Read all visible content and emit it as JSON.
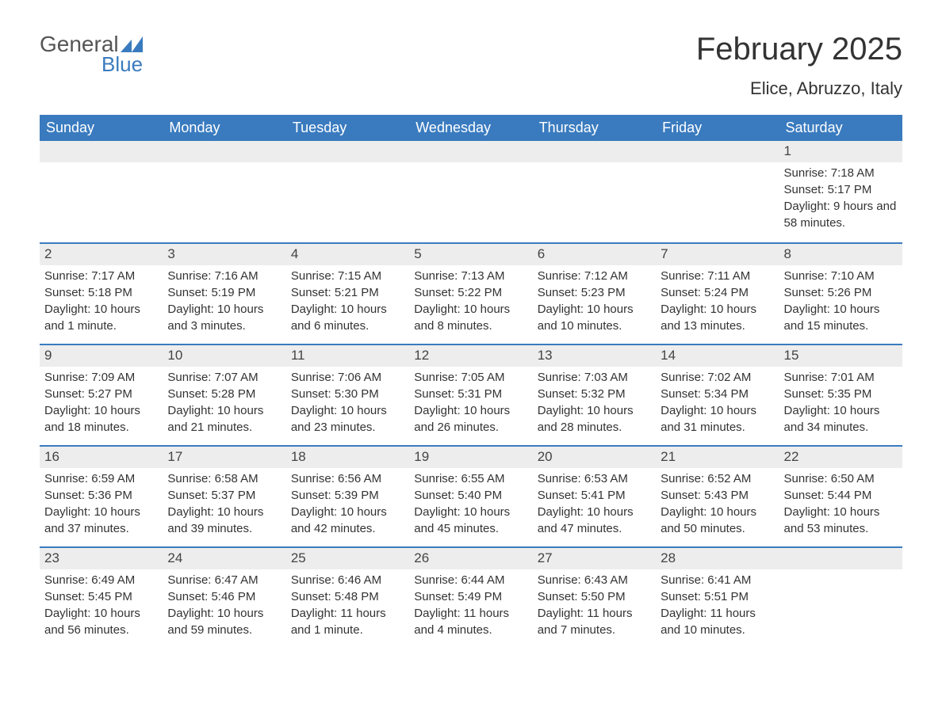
{
  "logo": {
    "text1": "General",
    "text2": "Blue",
    "icon_color": "#3a7bbf",
    "text1_color": "#555555"
  },
  "title": "February 2025",
  "location": "Elice, Abruzzo, Italy",
  "colors": {
    "header_bg": "#3a7bbf",
    "header_text": "#ffffff",
    "day_header_bg": "#ededed",
    "row_border": "#3a7bbf",
    "body_text": "#333333"
  },
  "fonts": {
    "title_size": 40,
    "location_size": 22,
    "dayheader_size": 18,
    "cell_size": 15
  },
  "day_labels": [
    "Sunday",
    "Monday",
    "Tuesday",
    "Wednesday",
    "Thursday",
    "Friday",
    "Saturday"
  ],
  "weeks": [
    [
      null,
      null,
      null,
      null,
      null,
      null,
      {
        "n": "1",
        "sunrise": "Sunrise: 7:18 AM",
        "sunset": "Sunset: 5:17 PM",
        "daylight": "Daylight: 9 hours and 58 minutes."
      }
    ],
    [
      {
        "n": "2",
        "sunrise": "Sunrise: 7:17 AM",
        "sunset": "Sunset: 5:18 PM",
        "daylight": "Daylight: 10 hours and 1 minute."
      },
      {
        "n": "3",
        "sunrise": "Sunrise: 7:16 AM",
        "sunset": "Sunset: 5:19 PM",
        "daylight": "Daylight: 10 hours and 3 minutes."
      },
      {
        "n": "4",
        "sunrise": "Sunrise: 7:15 AM",
        "sunset": "Sunset: 5:21 PM",
        "daylight": "Daylight: 10 hours and 6 minutes."
      },
      {
        "n": "5",
        "sunrise": "Sunrise: 7:13 AM",
        "sunset": "Sunset: 5:22 PM",
        "daylight": "Daylight: 10 hours and 8 minutes."
      },
      {
        "n": "6",
        "sunrise": "Sunrise: 7:12 AM",
        "sunset": "Sunset: 5:23 PM",
        "daylight": "Daylight: 10 hours and 10 minutes."
      },
      {
        "n": "7",
        "sunrise": "Sunrise: 7:11 AM",
        "sunset": "Sunset: 5:24 PM",
        "daylight": "Daylight: 10 hours and 13 minutes."
      },
      {
        "n": "8",
        "sunrise": "Sunrise: 7:10 AM",
        "sunset": "Sunset: 5:26 PM",
        "daylight": "Daylight: 10 hours and 15 minutes."
      }
    ],
    [
      {
        "n": "9",
        "sunrise": "Sunrise: 7:09 AM",
        "sunset": "Sunset: 5:27 PM",
        "daylight": "Daylight: 10 hours and 18 minutes."
      },
      {
        "n": "10",
        "sunrise": "Sunrise: 7:07 AM",
        "sunset": "Sunset: 5:28 PM",
        "daylight": "Daylight: 10 hours and 21 minutes."
      },
      {
        "n": "11",
        "sunrise": "Sunrise: 7:06 AM",
        "sunset": "Sunset: 5:30 PM",
        "daylight": "Daylight: 10 hours and 23 minutes."
      },
      {
        "n": "12",
        "sunrise": "Sunrise: 7:05 AM",
        "sunset": "Sunset: 5:31 PM",
        "daylight": "Daylight: 10 hours and 26 minutes."
      },
      {
        "n": "13",
        "sunrise": "Sunrise: 7:03 AM",
        "sunset": "Sunset: 5:32 PM",
        "daylight": "Daylight: 10 hours and 28 minutes."
      },
      {
        "n": "14",
        "sunrise": "Sunrise: 7:02 AM",
        "sunset": "Sunset: 5:34 PM",
        "daylight": "Daylight: 10 hours and 31 minutes."
      },
      {
        "n": "15",
        "sunrise": "Sunrise: 7:01 AM",
        "sunset": "Sunset: 5:35 PM",
        "daylight": "Daylight: 10 hours and 34 minutes."
      }
    ],
    [
      {
        "n": "16",
        "sunrise": "Sunrise: 6:59 AM",
        "sunset": "Sunset: 5:36 PM",
        "daylight": "Daylight: 10 hours and 37 minutes."
      },
      {
        "n": "17",
        "sunrise": "Sunrise: 6:58 AM",
        "sunset": "Sunset: 5:37 PM",
        "daylight": "Daylight: 10 hours and 39 minutes."
      },
      {
        "n": "18",
        "sunrise": "Sunrise: 6:56 AM",
        "sunset": "Sunset: 5:39 PM",
        "daylight": "Daylight: 10 hours and 42 minutes."
      },
      {
        "n": "19",
        "sunrise": "Sunrise: 6:55 AM",
        "sunset": "Sunset: 5:40 PM",
        "daylight": "Daylight: 10 hours and 45 minutes."
      },
      {
        "n": "20",
        "sunrise": "Sunrise: 6:53 AM",
        "sunset": "Sunset: 5:41 PM",
        "daylight": "Daylight: 10 hours and 47 minutes."
      },
      {
        "n": "21",
        "sunrise": "Sunrise: 6:52 AM",
        "sunset": "Sunset: 5:43 PM",
        "daylight": "Daylight: 10 hours and 50 minutes."
      },
      {
        "n": "22",
        "sunrise": "Sunrise: 6:50 AM",
        "sunset": "Sunset: 5:44 PM",
        "daylight": "Daylight: 10 hours and 53 minutes."
      }
    ],
    [
      {
        "n": "23",
        "sunrise": "Sunrise: 6:49 AM",
        "sunset": "Sunset: 5:45 PM",
        "daylight": "Daylight: 10 hours and 56 minutes."
      },
      {
        "n": "24",
        "sunrise": "Sunrise: 6:47 AM",
        "sunset": "Sunset: 5:46 PM",
        "daylight": "Daylight: 10 hours and 59 minutes."
      },
      {
        "n": "25",
        "sunrise": "Sunrise: 6:46 AM",
        "sunset": "Sunset: 5:48 PM",
        "daylight": "Daylight: 11 hours and 1 minute."
      },
      {
        "n": "26",
        "sunrise": "Sunrise: 6:44 AM",
        "sunset": "Sunset: 5:49 PM",
        "daylight": "Daylight: 11 hours and 4 minutes."
      },
      {
        "n": "27",
        "sunrise": "Sunrise: 6:43 AM",
        "sunset": "Sunset: 5:50 PM",
        "daylight": "Daylight: 11 hours and 7 minutes."
      },
      {
        "n": "28",
        "sunrise": "Sunrise: 6:41 AM",
        "sunset": "Sunset: 5:51 PM",
        "daylight": "Daylight: 11 hours and 10 minutes."
      },
      null
    ]
  ]
}
